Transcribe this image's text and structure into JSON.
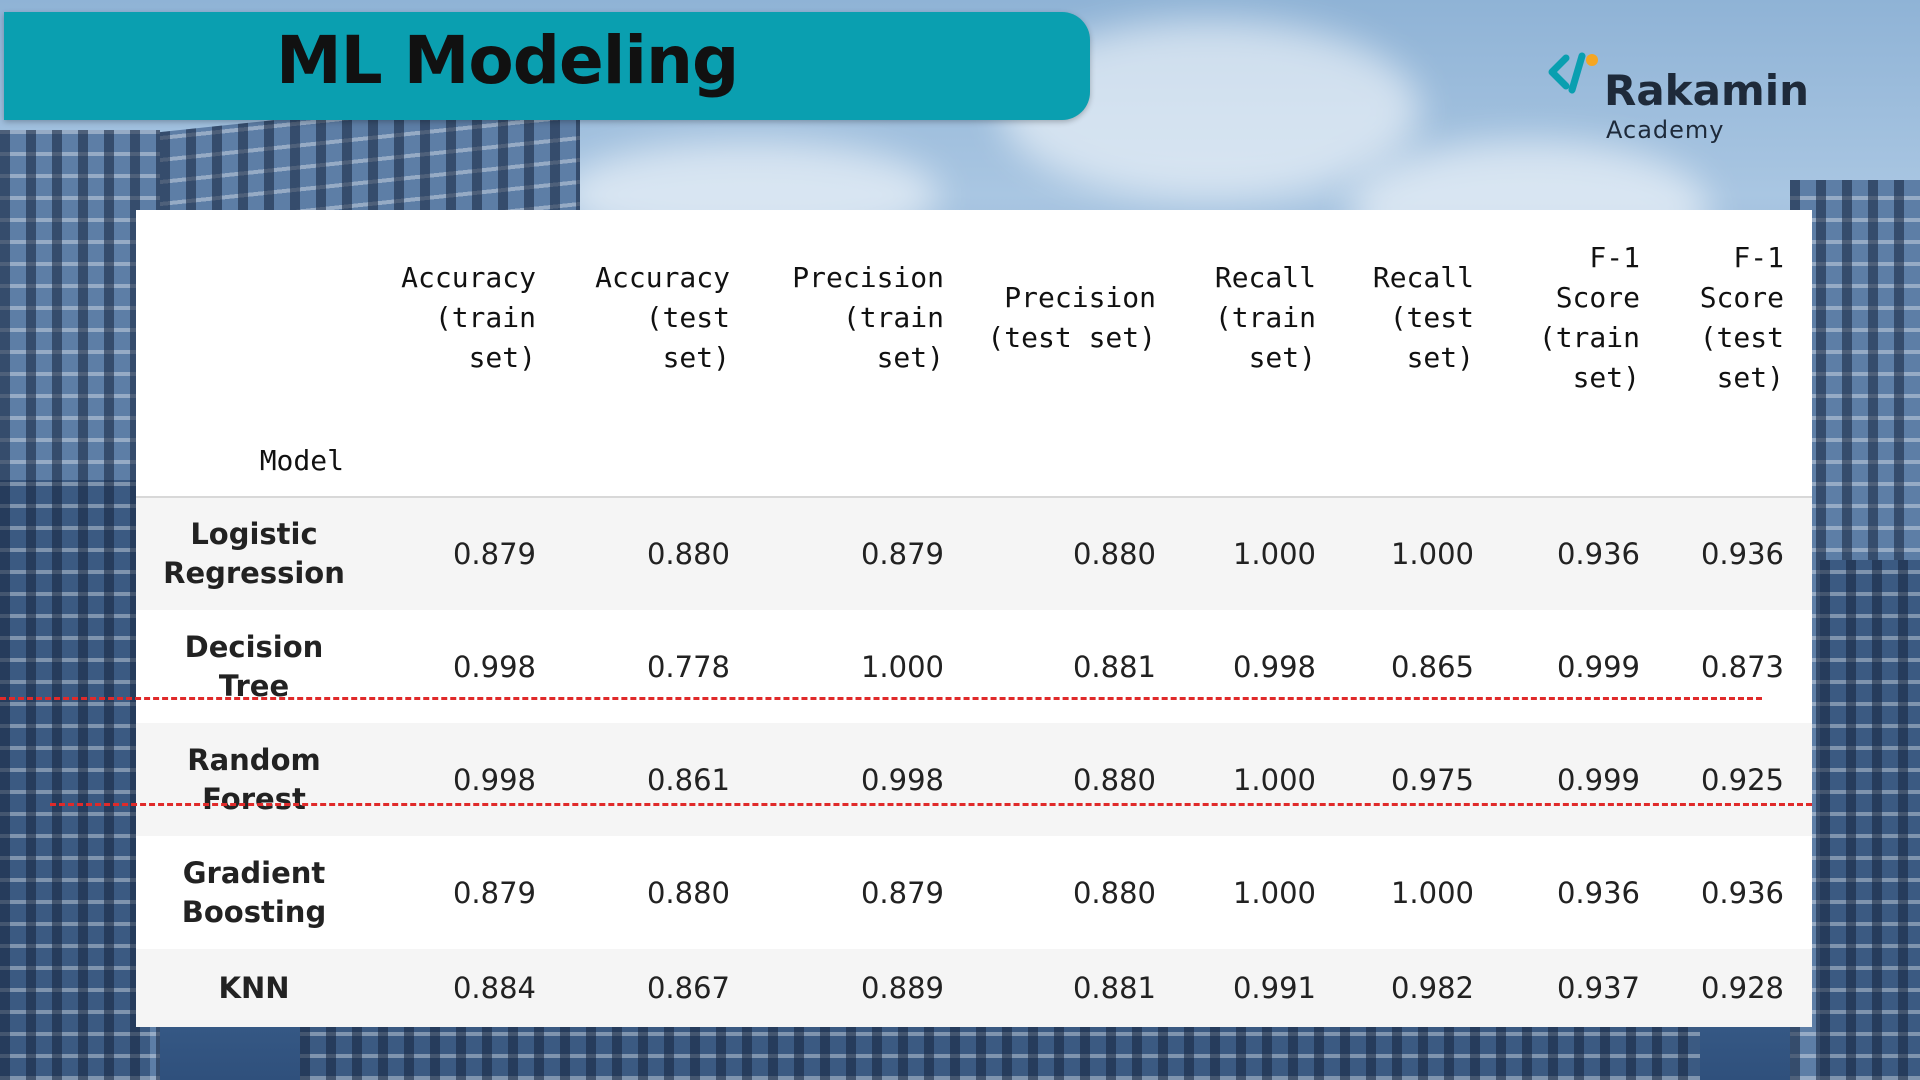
{
  "slide": {
    "title": "ML Modeling"
  },
  "logo": {
    "name": "Rakamin",
    "subtitle": "Academy",
    "mark_colors": {
      "primary": "#0a9fb0",
      "accent": "#f5a623"
    }
  },
  "table": {
    "index_label": "Model",
    "columns": [
      "Accuracy (train set)",
      "Accuracy (test set)",
      "Precision (train set)",
      "Precision (test set)",
      "Recall (train set)",
      "Recall (test set)",
      "F-1 Score (train set)",
      "F-1 Score (test set)"
    ],
    "rows": [
      {
        "model": "Logistic Regression",
        "values": [
          "0.879",
          "0.880",
          "0.879",
          "0.880",
          "1.000",
          "1.000",
          "0.936",
          "0.936"
        ]
      },
      {
        "model": "Decision Tree",
        "values": [
          "0.998",
          "0.778",
          "1.000",
          "0.881",
          "0.998",
          "0.865",
          "0.999",
          "0.873"
        ]
      },
      {
        "model": "Random Forest",
        "values": [
          "0.998",
          "0.861",
          "0.998",
          "0.880",
          "1.000",
          "0.975",
          "0.999",
          "0.925"
        ]
      },
      {
        "model": "Gradient Boosting",
        "values": [
          "0.879",
          "0.880",
          "0.879",
          "0.880",
          "1.000",
          "1.000",
          "0.936",
          "0.936"
        ]
      },
      {
        "model": "KNN",
        "values": [
          "0.884",
          "0.867",
          "0.889",
          "0.881",
          "0.991",
          "0.982",
          "0.937",
          "0.928"
        ]
      }
    ],
    "highlighted_model": "Random Forest",
    "highlight_color": "#e02a2a"
  }
}
